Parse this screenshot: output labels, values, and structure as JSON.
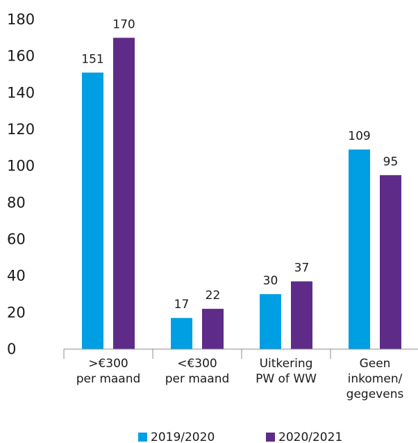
{
  "chart_data": {
    "type": "bar",
    "title": "",
    "xlabel": "",
    "ylabel": "",
    "ylim": [
      0,
      180
    ],
    "yticks": [
      0,
      20,
      40,
      60,
      80,
      100,
      120,
      140,
      160,
      180
    ],
    "ytick_labels": [
      "0",
      "20",
      "40",
      "60",
      "80",
      "100",
      "120",
      "140",
      "160",
      "180"
    ],
    "grid": false,
    "legend_position": "bottom",
    "categories": [
      [
        ">€300",
        "per maand"
      ],
      [
        "<€300",
        "per maand"
      ],
      [
        "Uitkering",
        "PW of WW"
      ],
      [
        "Geen",
        "inkomen/",
        "gegevens"
      ]
    ],
    "series": [
      {
        "name": "2019/2020",
        "color": "#009fe3",
        "values": [
          151,
          17,
          30,
          109
        ],
        "labels": [
          "151",
          "17",
          "30",
          "109"
        ]
      },
      {
        "name": "2020/2021",
        "color": "#5f2b88",
        "values": [
          170,
          22,
          37,
          95
        ],
        "labels": [
          "170",
          "22",
          "37",
          "95"
        ]
      }
    ]
  }
}
